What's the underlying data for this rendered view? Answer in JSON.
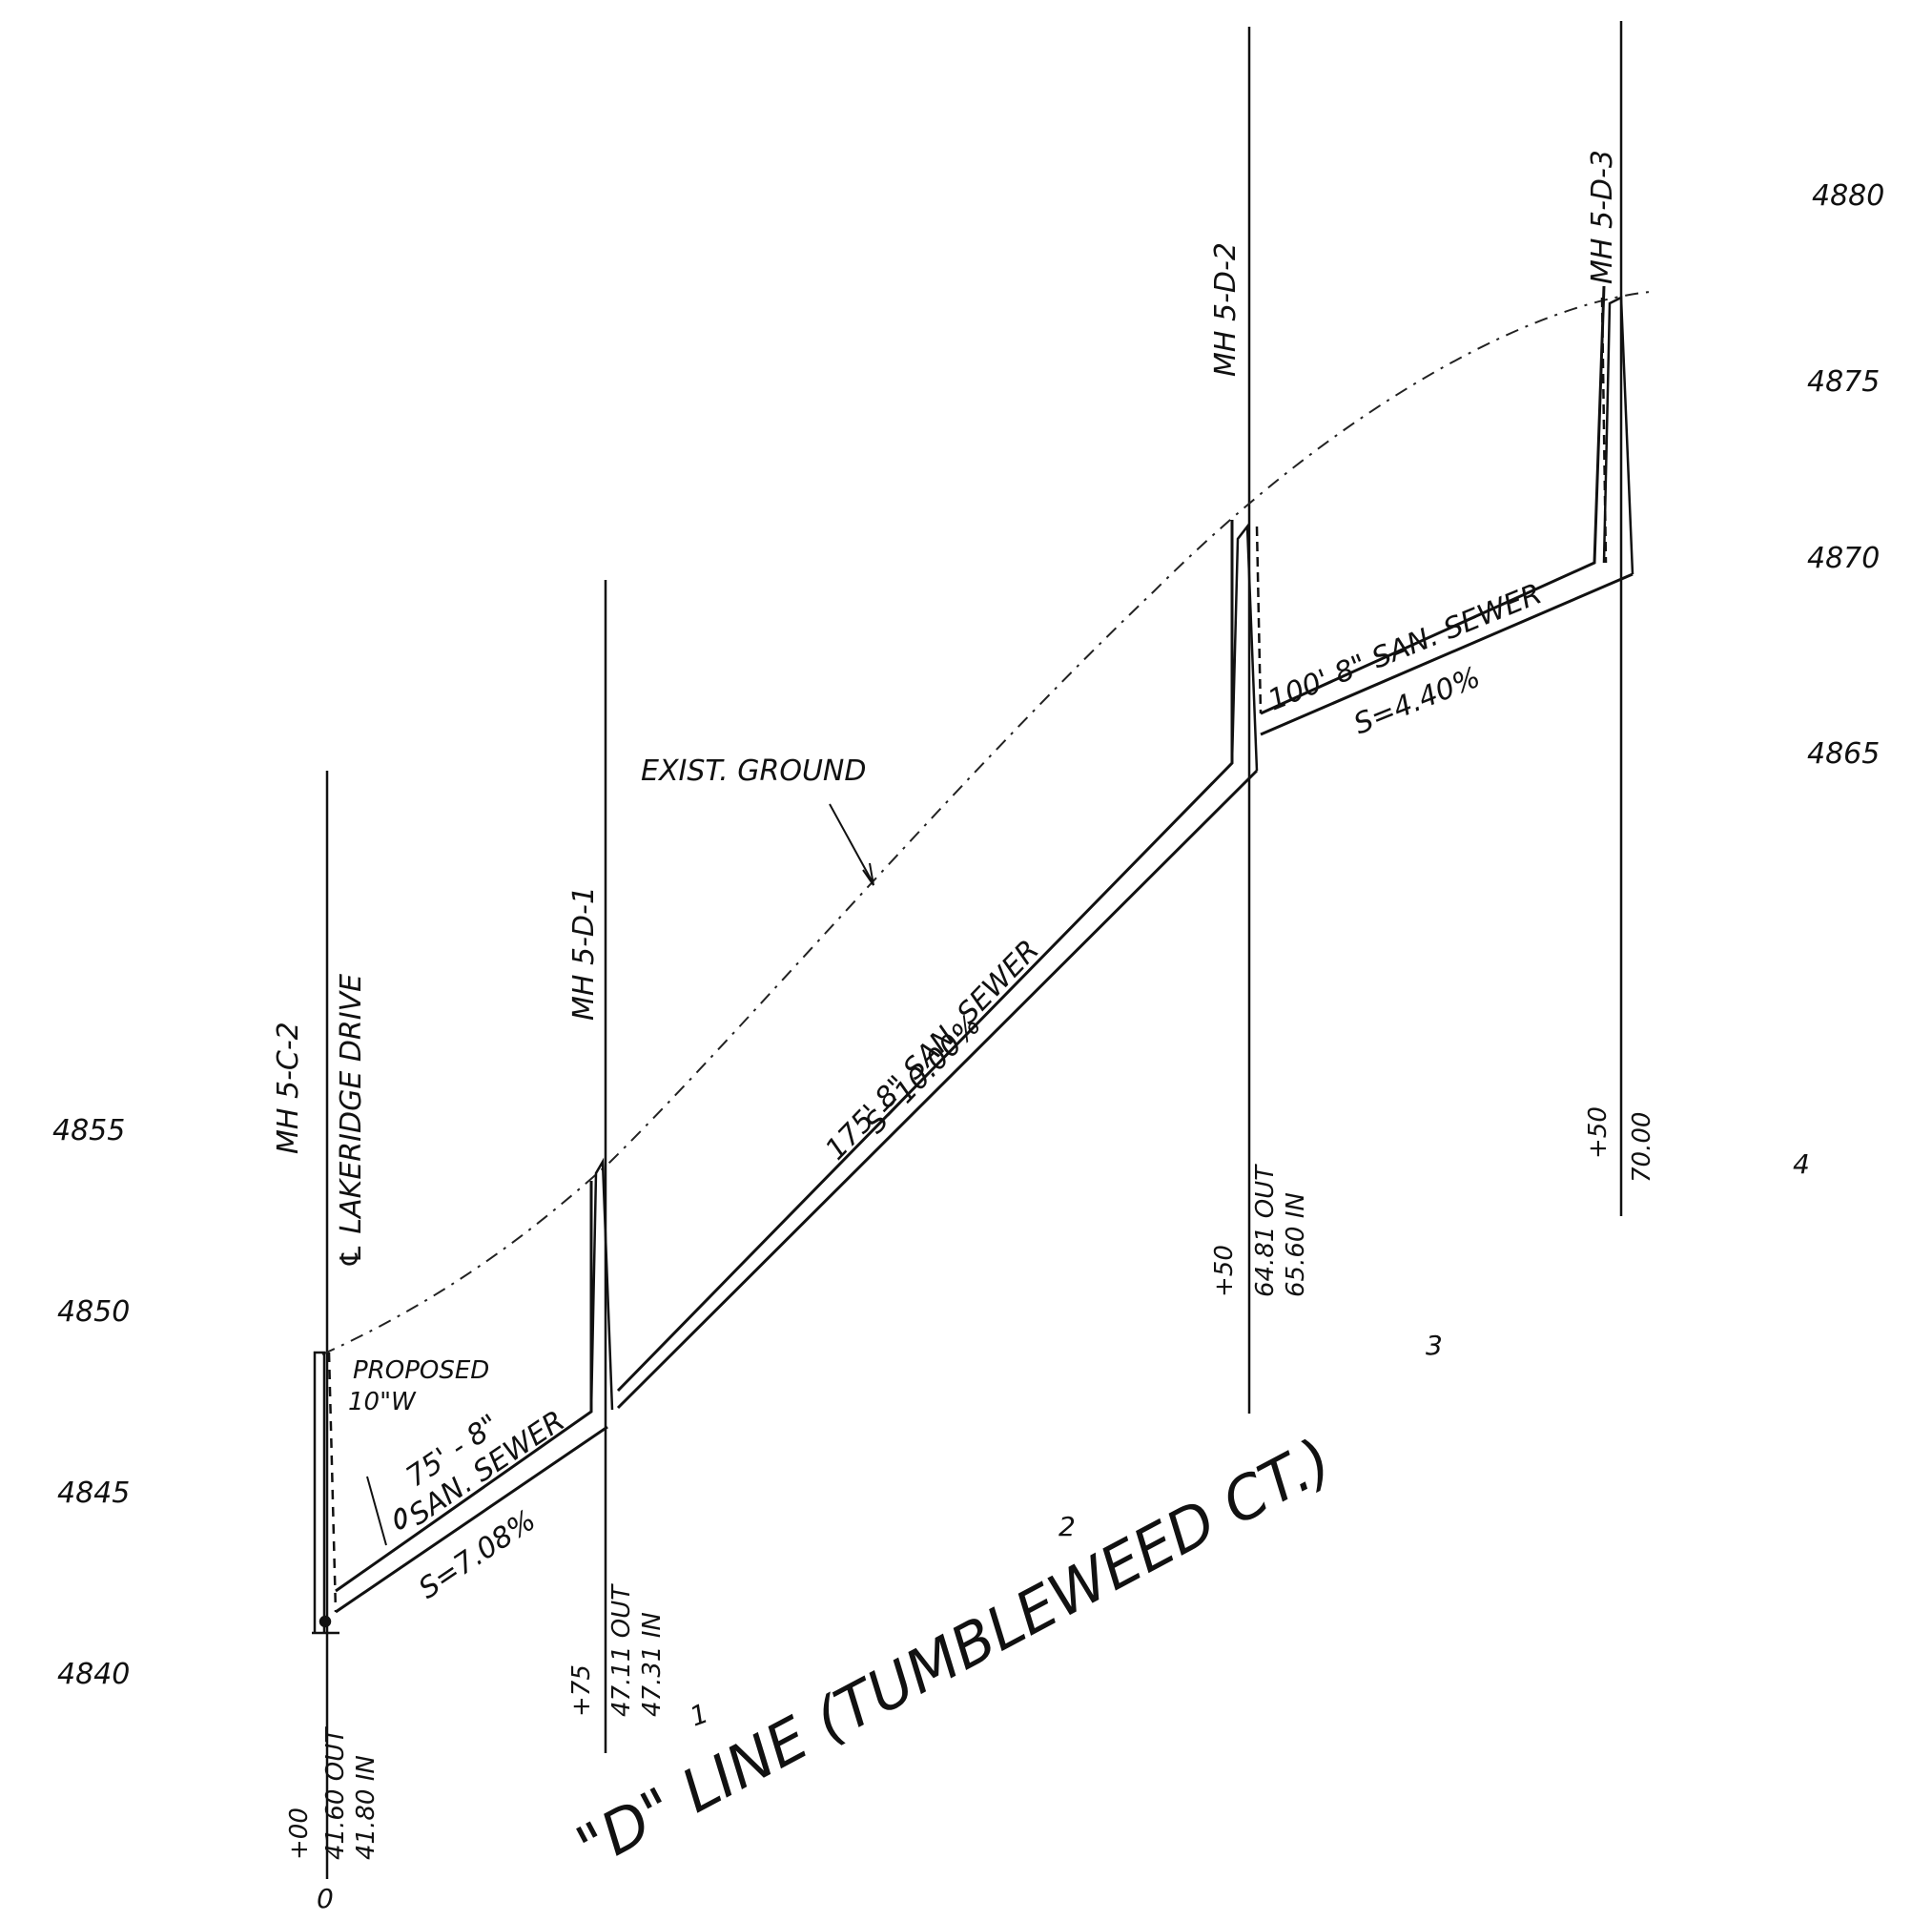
{
  "elevations_left": [
    "4855",
    "4850",
    "4845",
    "4840"
  ],
  "elevations_right": [
    "4880",
    "4875",
    "4870",
    "4865"
  ],
  "station_numbers": [
    "0",
    "1",
    "2",
    "3",
    "4"
  ],
  "manholes": [
    {
      "name": "MH 5-C-2",
      "station": "+00",
      "out": "41.60 OUT",
      "in": "41.80 IN"
    },
    {
      "name": "MH 5-D-1",
      "station": "+75",
      "out": "47.11 OUT",
      "in": "47.31 IN"
    },
    {
      "name": "MH 5-D-2",
      "station": "+50",
      "out": "64.81 OUT",
      "in": "65.60 IN"
    },
    {
      "name": "MH 5-D-3",
      "station": "+50",
      "value": "70.00"
    }
  ],
  "street_label": "℄ LAKERIDGE DRIVE",
  "existing_ground_label": "EXIST. GROUND",
  "proposed_label": [
    "PROPOSED",
    "10\"W"
  ],
  "pipes": [
    {
      "desc_line1": "75' - 8\"",
      "desc_line2": "SAN. SEWER",
      "slope": "S=7.08%"
    },
    {
      "desc": "175' 8\" SAN. SEWER",
      "slope": "S=10.00%"
    },
    {
      "desc": "100' 8\" SAN. SEWER",
      "slope": "S=4.40%"
    }
  ],
  "title": "\"D\" LINE (TUMBLEWEED CT.)"
}
